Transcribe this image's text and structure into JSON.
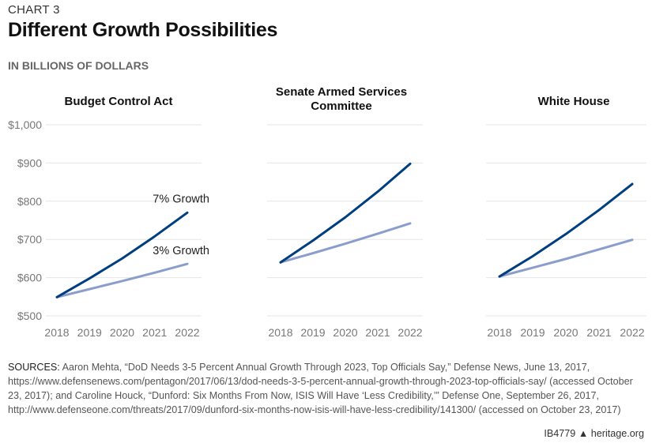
{
  "header": {
    "chart_number": "CHART 3",
    "title": "Different Growth Possibilities",
    "unit": "IN BILLIONS OF DOLLARS"
  },
  "chart_data": [
    {
      "type": "line",
      "title": [
        "Budget Control Act"
      ],
      "x": [
        2018,
        2019,
        2020,
        2021,
        2022
      ],
      "ylim": [
        500,
        1000
      ],
      "yticks": [
        "$500",
        "$600",
        "$700",
        "$800",
        "$900",
        "$1,000"
      ],
      "xticks": [
        "2018",
        "2019",
        "2020",
        "2021",
        "2022"
      ],
      "grid": true,
      "series": [
        {
          "name": "7% Growth",
          "color": "#003f7f",
          "values": [
            549,
            598,
            650,
            708,
            770
          ]
        },
        {
          "name": "3% Growth",
          "color": "#8a9dcc",
          "values": [
            549,
            570,
            591,
            613,
            636
          ]
        }
      ]
    },
    {
      "type": "line",
      "title": [
        "Senate Armed Services",
        "Committee"
      ],
      "x": [
        2018,
        2019,
        2020,
        2021,
        2022
      ],
      "ylim": [
        500,
        1000
      ],
      "xticks": [
        "2018",
        "2019",
        "2020",
        "2021",
        "2022"
      ],
      "grid": true,
      "series": [
        {
          "color": "#003f7f",
          "values": [
            640,
            697,
            758,
            825,
            898
          ]
        },
        {
          "color": "#8a9dcc",
          "values": [
            640,
            664,
            689,
            715,
            742
          ]
        }
      ]
    },
    {
      "type": "line",
      "title": [
        "White House"
      ],
      "x": [
        2018,
        2019,
        2020,
        2021,
        2022
      ],
      "ylim": [
        500,
        1000
      ],
      "xticks": [
        "2018",
        "2019",
        "2020",
        "2021",
        "2022"
      ],
      "grid": true,
      "series": [
        {
          "color": "#003f7f",
          "values": [
            603,
            656,
            714,
            777,
            845
          ]
        },
        {
          "color": "#8a9dcc",
          "values": [
            603,
            626,
            649,
            674,
            699
          ]
        }
      ]
    }
  ],
  "sources": {
    "label": "SOURCES:",
    "text": " Aaron Mehta, “DoD Needs 3-5 Percent Annual Growth Through 2023, Top Officials Say,” Defense News, June 13, 2017, https://www.defensenews.com/pentagon/2017/06/13/dod-needs-3-5-percent-annual-growth-through-2023-top-officials-say/ (accessed October 23, 2017); and Caroline Houck, “Dunford: Six Months From Now, ISIS Will Have ‘Less Credibility,’” Defense One, September 26, 2017, http://www.defenseone.com/threats/2017/09/dunford-six-months-now-isis-will-have-less-credibility/141300/ (accessed on October 23, 2017)"
  },
  "footer": {
    "id": "IB4779",
    "site": "heritage.org",
    "icon": "liberty-bell-icon"
  }
}
